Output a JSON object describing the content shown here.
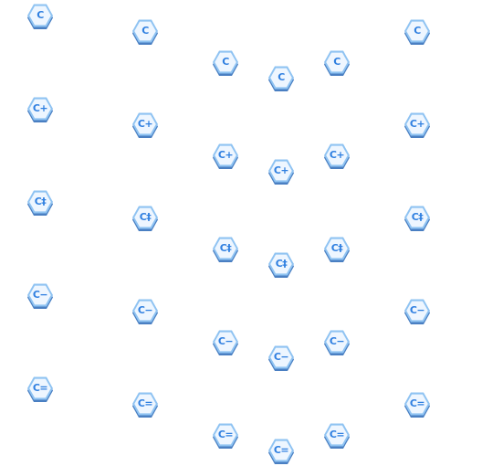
{
  "colors": {
    "fill": "#eef6ff",
    "border": "#8fc3f2",
    "shadow": "#4a7fc2",
    "text": "#2f7fe0"
  },
  "icon_name": "hexagon-tile-icon",
  "icons": [
    {
      "label": "C",
      "group": "C"
    },
    {
      "label": "C",
      "group": "C"
    },
    {
      "label": "C",
      "group": "C"
    },
    {
      "label": "C",
      "group": "C"
    },
    {
      "label": "C",
      "group": "C"
    },
    {
      "label": "C",
      "group": "C"
    },
    {
      "label": "C+",
      "group": "C-plus"
    },
    {
      "label": "C+",
      "group": "C-plus"
    },
    {
      "label": "C+",
      "group": "C-plus"
    },
    {
      "label": "C+",
      "group": "C-plus"
    },
    {
      "label": "C+",
      "group": "C-plus"
    },
    {
      "label": "C+",
      "group": "C-plus"
    },
    {
      "label": "C‡",
      "group": "C-double-dagger"
    },
    {
      "label": "C‡",
      "group": "C-double-dagger"
    },
    {
      "label": "C‡",
      "group": "C-double-dagger"
    },
    {
      "label": "C‡",
      "group": "C-double-dagger"
    },
    {
      "label": "C‡",
      "group": "C-double-dagger"
    },
    {
      "label": "C‡",
      "group": "C-double-dagger"
    },
    {
      "label": "C−",
      "group": "C-minus"
    },
    {
      "label": "C−",
      "group": "C-minus"
    },
    {
      "label": "C−",
      "group": "C-minus"
    },
    {
      "label": "C−",
      "group": "C-minus"
    },
    {
      "label": "C−",
      "group": "C-minus"
    },
    {
      "label": "C−",
      "group": "C-minus"
    },
    {
      "label": "C=",
      "group": "C-equals"
    },
    {
      "label": "C=",
      "group": "C-equals"
    },
    {
      "label": "C=",
      "group": "C-equals"
    },
    {
      "label": "C=",
      "group": "C-equals"
    },
    {
      "label": "C=",
      "group": "C-equals"
    },
    {
      "label": "C=",
      "group": "C-equals"
    }
  ]
}
